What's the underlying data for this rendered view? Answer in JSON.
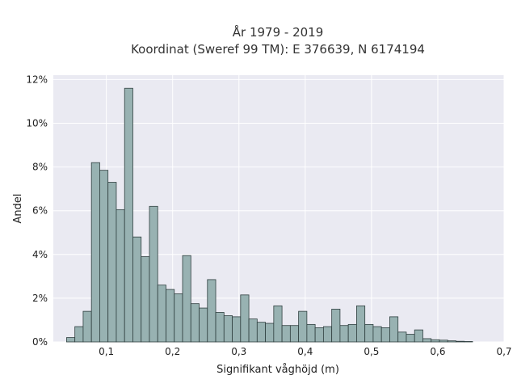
{
  "chart_data": {
    "type": "bar",
    "title_lines": [
      "År 1979 - 2019",
      "Koordinat (Sweref 99 TM): E 376639, N 6174194"
    ],
    "xlabel": "Signifikant våghöjd (m)",
    "ylabel": "Andel",
    "xlim": [
      0.02,
      0.7
    ],
    "ylim": [
      0,
      12.2
    ],
    "xticks": [
      0.1,
      0.2,
      0.3,
      0.4,
      0.5,
      0.6,
      0.7
    ],
    "xtick_labels": [
      "0,1",
      "0,2",
      "0,3",
      "0,4",
      "0,5",
      "0,6",
      "0,7"
    ],
    "yticks": [
      0,
      2,
      4,
      6,
      8,
      10,
      12
    ],
    "ytick_labels": [
      "0%",
      "2%",
      "4%",
      "6%",
      "8%",
      "10%",
      "12%"
    ],
    "grid": true,
    "bin_start": 0.04,
    "bin_width": 0.0125,
    "values": [
      0.2,
      0.7,
      1.4,
      8.2,
      7.85,
      7.3,
      6.05,
      11.6,
      4.8,
      3.9,
      6.2,
      2.6,
      2.4,
      2.2,
      3.95,
      1.75,
      1.55,
      2.85,
      1.35,
      1.2,
      1.15,
      2.15,
      1.05,
      0.9,
      0.85,
      1.65,
      0.75,
      0.75,
      1.4,
      0.8,
      0.65,
      0.7,
      1.5,
      0.75,
      0.8,
      1.65,
      0.8,
      0.7,
      0.65,
      1.15,
      0.45,
      0.35,
      0.55,
      0.15,
      0.1,
      0.08,
      0.05,
      0.03,
      0.02
    ]
  },
  "colors": {
    "plot_background": "#eaeaf2",
    "bar_fill": "#98b2b2",
    "bar_edge": "#2f3f3f"
  }
}
